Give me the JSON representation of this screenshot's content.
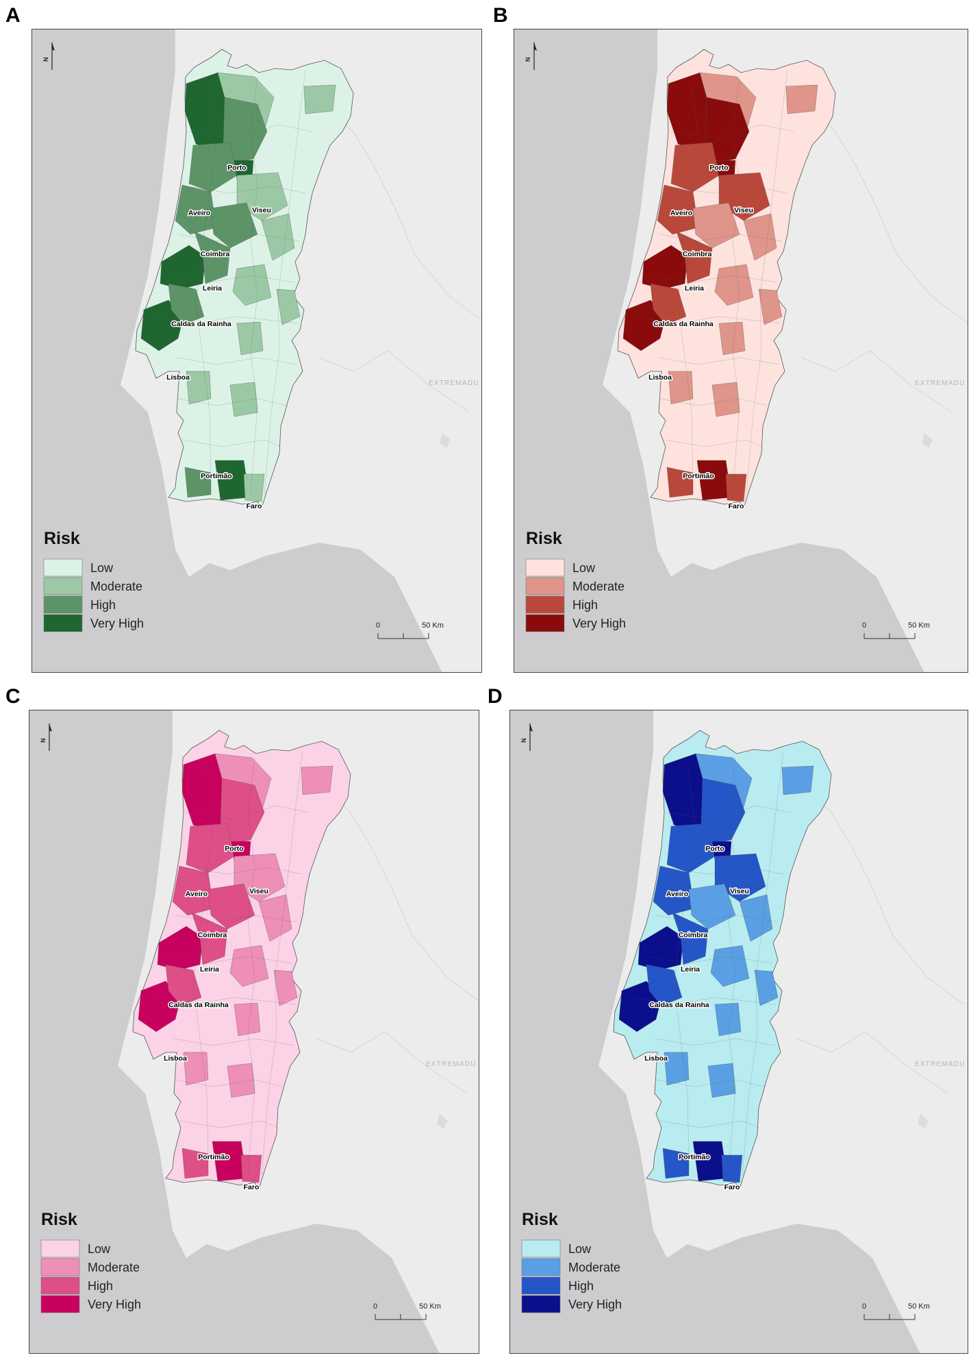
{
  "panels": [
    {
      "letter": "A",
      "legend_title": "Risk",
      "legend": [
        {
          "label": "Low",
          "color": "#dcf2e6"
        },
        {
          "label": "Moderate",
          "color": "#9cc9a5"
        },
        {
          "label": "High",
          "color": "#5c9467"
        },
        {
          "label": "Very High",
          "color": "#1f6631"
        }
      ]
    },
    {
      "letter": "B",
      "legend_title": "Risk",
      "legend": [
        {
          "label": "Low",
          "color": "#fde2de"
        },
        {
          "label": "Moderate",
          "color": "#e0958a"
        },
        {
          "label": "High",
          "color": "#b9483a"
        },
        {
          "label": "Very High",
          "color": "#8a0b0c"
        }
      ]
    },
    {
      "letter": "C",
      "legend_title": "Risk",
      "legend": [
        {
          "label": "Low",
          "color": "#fbd2e6"
        },
        {
          "label": "Moderate",
          "color": "#ee8fb7"
        },
        {
          "label": "High",
          "color": "#de4e87"
        },
        {
          "label": "Very High",
          "color": "#c8005e"
        }
      ]
    },
    {
      "letter": "D",
      "legend_title": "Risk",
      "legend": [
        {
          "label": "Low",
          "color": "#b8ecf0"
        },
        {
          "label": "Moderate",
          "color": "#5a9fe3"
        },
        {
          "label": "High",
          "color": "#2456c8"
        },
        {
          "label": "Very High",
          "color": "#0b0f8c"
        }
      ]
    }
  ],
  "cities": [
    "Porto",
    "Aveiro",
    "Viseu",
    "Coimbra",
    "Leiria",
    "Caldas da Rainha",
    "Lisboa",
    "Portimão",
    "Faro"
  ],
  "region_label": "EXTREMADU",
  "north_label": "N",
  "scale": {
    "start": "0",
    "end": "50 Km"
  },
  "colors": {
    "sea": "#cdcdcf",
    "land": "#ececec",
    "border": "#555555"
  }
}
